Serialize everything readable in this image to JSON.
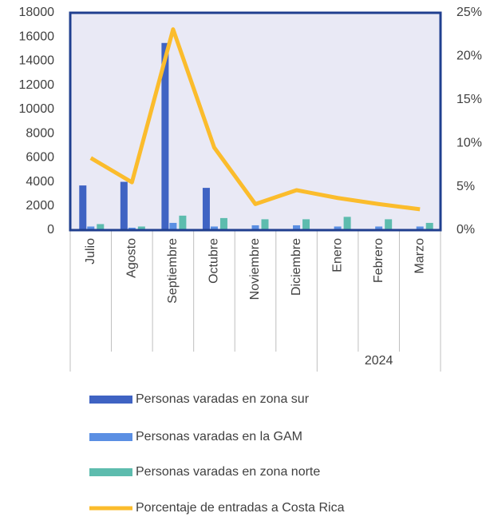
{
  "chart_data": {
    "type": "bar",
    "categories": [
      "Julio",
      "Agosto",
      "Septiembre",
      "Octubre",
      "Noviembre",
      "Diciembre",
      "Enero",
      "Febrero",
      "Marzo"
    ],
    "category_groups": [
      {
        "label": "2024",
        "start": 6,
        "end": 8
      }
    ],
    "series": [
      {
        "name": "Personas varadas en zona sur",
        "type": "bar",
        "color": "#3f63c3",
        "values": [
          3700,
          4000,
          15500,
          3500,
          0,
          0,
          0,
          0,
          0
        ]
      },
      {
        "name": "Personas varadas en la GAM",
        "type": "bar",
        "color": "#5b8fe3",
        "values": [
          300,
          200,
          600,
          300,
          400,
          400,
          300,
          300,
          300
        ]
      },
      {
        "name": "Personas varadas en zona norte",
        "type": "bar",
        "color": "#5dbcae",
        "values": [
          500,
          300,
          1200,
          1000,
          900,
          900,
          1100,
          900,
          600
        ]
      },
      {
        "name": "Porcentaje de entradas a Costa Rica",
        "type": "line",
        "axis": "y2",
        "color": "#fbbc2c",
        "values": [
          8.3,
          5.5,
          23.1,
          9.5,
          3.0,
          4.6,
          3.7,
          3.0,
          2.4
        ]
      }
    ],
    "ylim": [
      0,
      18000
    ],
    "yticks": [
      0,
      2000,
      4000,
      6000,
      8000,
      10000,
      12000,
      14000,
      16000,
      18000
    ],
    "y2lim": [
      0,
      25
    ],
    "y2ticks": [
      {
        "value": 0,
        "label": "0%"
      },
      {
        "value": 5,
        "label": "5%"
      },
      {
        "value": 10,
        "label": "10%"
      },
      {
        "value": 15,
        "label": "15%"
      },
      {
        "value": 20,
        "label": "20%"
      },
      {
        "value": 25,
        "label": "25%"
      }
    ],
    "legend": "bottom"
  }
}
